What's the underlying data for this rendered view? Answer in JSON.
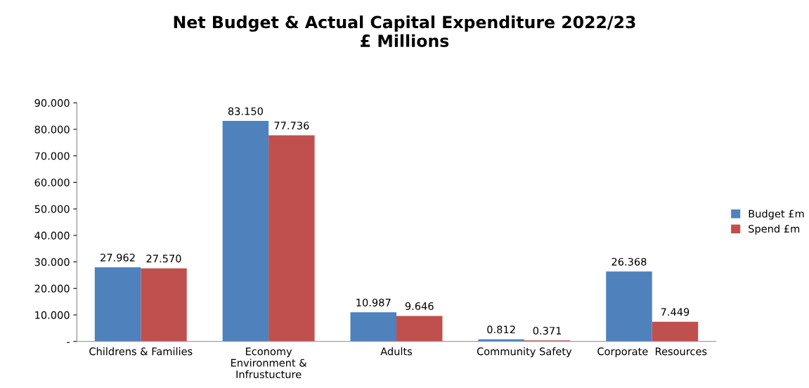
{
  "chart_data": {
    "type": "bar",
    "title": "Net Budget & Actual Capital Expenditure 2022/23\n£ Millions",
    "categories": [
      "Childrens & Families",
      "Economy\nEnvironment &\nInfrustucture",
      "Adults",
      "Community Safety",
      "Corporate  Resources"
    ],
    "series": [
      {
        "name": "Budget £m",
        "color": "#4f81bd",
        "values": [
          27.962,
          83.15,
          10.987,
          0.812,
          26.368
        ],
        "value_labels": [
          "27.962",
          "83.150",
          "10.987",
          "0.812",
          "26.368"
        ]
      },
      {
        "name": "Spend £m",
        "color": "#c0504d",
        "values": [
          27.57,
          77.736,
          9.646,
          0.371,
          7.449
        ],
        "value_labels": [
          "27.570",
          "77.736",
          "9.646",
          "0.371",
          "7.449"
        ]
      }
    ],
    "ylim": [
      0,
      90
    ],
    "yticks": [
      {
        "value": 0,
        "label": "-"
      },
      {
        "value": 10,
        "label": "10.000"
      },
      {
        "value": 20,
        "label": "20.000"
      },
      {
        "value": 30,
        "label": "30.000"
      },
      {
        "value": 40,
        "label": "40.000"
      },
      {
        "value": 50,
        "label": "50.000"
      },
      {
        "value": 60,
        "label": "60.000"
      },
      {
        "value": 70,
        "label": "70.000"
      },
      {
        "value": 80,
        "label": "80.000"
      },
      {
        "value": 90,
        "label": "90.000"
      }
    ],
    "grid": false,
    "legend": "right"
  }
}
